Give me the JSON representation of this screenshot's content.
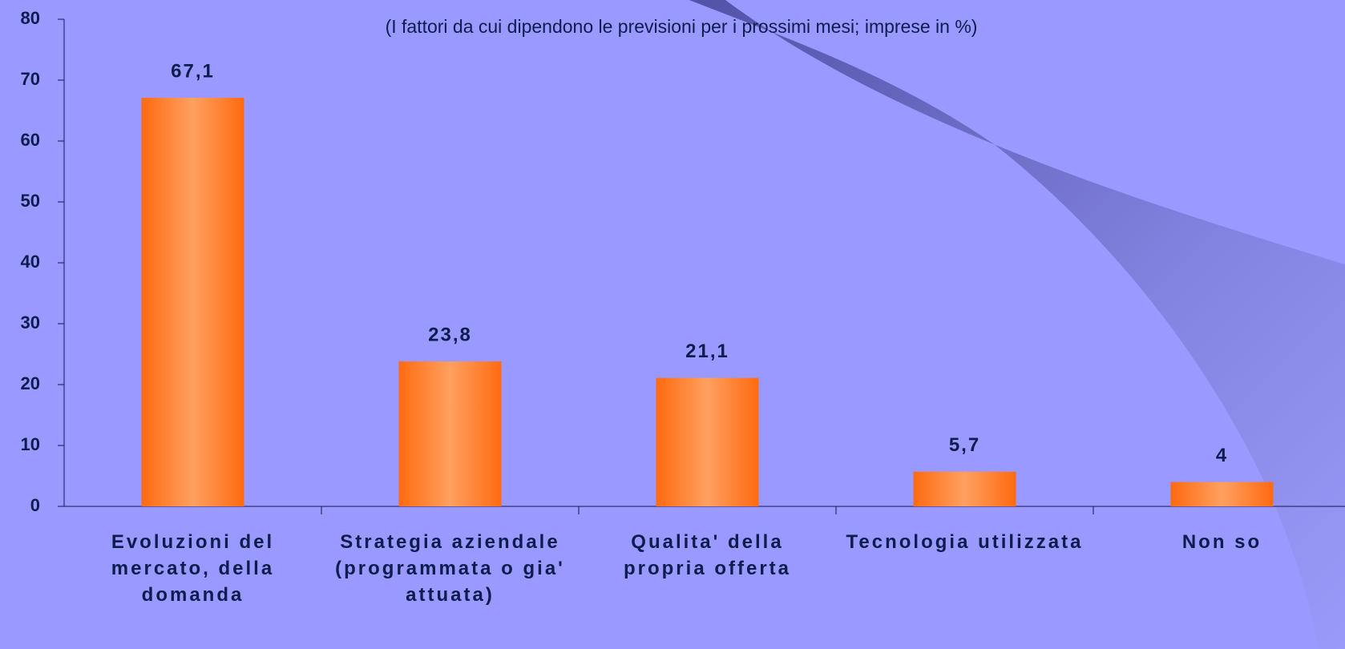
{
  "chart_data": {
    "type": "bar",
    "title": "(I fattori da cui dipendono le previsioni per i prossimi mesi; imprese in %)",
    "categories": [
      "Evoluzioni del mercato, della domanda",
      "Strategia aziendale (programmata o gia' attuata)",
      "Qualita' della propria offerta",
      "Tecnologia utilizzata",
      "Non so"
    ],
    "values": [
      67.1,
      23.8,
      21.1,
      5.7,
      4
    ],
    "value_labels": [
      "67,1",
      "23,8",
      "21,1",
      "5,7",
      "4"
    ],
    "color": "#ff7a2e",
    "ylim": [
      0,
      80
    ],
    "yticks": [
      0,
      10,
      20,
      30,
      40,
      50,
      60,
      70,
      80
    ]
  }
}
